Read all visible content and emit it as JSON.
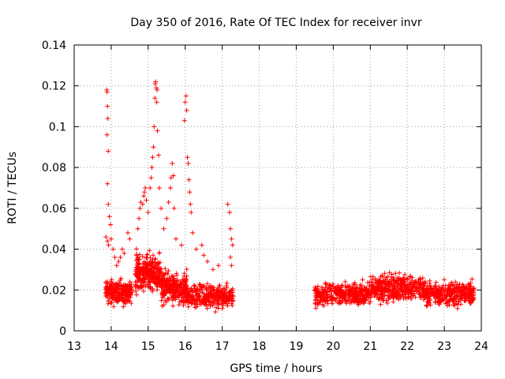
{
  "chart_data": {
    "type": "scatter",
    "title": "Day 350 of 2016, Rate Of TEC Index for receiver invr",
    "xlabel": "GPS time / hours",
    "ylabel": "ROTI / TECUs",
    "xlim": [
      13,
      24
    ],
    "ylim": [
      0,
      0.14
    ],
    "xticks": [
      13,
      14,
      15,
      16,
      17,
      18,
      19,
      20,
      21,
      22,
      23,
      24
    ],
    "xtick_labels": [
      "13",
      "14",
      "15",
      "16",
      "17",
      "18",
      "19",
      "20",
      "21",
      "22",
      "23",
      "24"
    ],
    "yticks": [
      0,
      0.02,
      0.04,
      0.06,
      0.08,
      0.1,
      0.12,
      0.14
    ],
    "ytick_labels": [
      "0",
      "0.02",
      "0.04",
      "0.06",
      "0.08",
      "0.1",
      "0.12",
      "0.14"
    ],
    "grid": true,
    "marker": "+",
    "color": "#ff0000",
    "series": [
      {
        "name": "ROTI",
        "points": [
          [
            13.88,
            0.118
          ],
          [
            13.89,
            0.117
          ],
          [
            13.9,
            0.11
          ],
          [
            13.91,
            0.104
          ],
          [
            13.89,
            0.096
          ],
          [
            13.92,
            0.088
          ],
          [
            13.9,
            0.072
          ],
          [
            13.92,
            0.062
          ],
          [
            13.95,
            0.056
          ],
          [
            13.98,
            0.052
          ],
          [
            13.86,
            0.046
          ],
          [
            13.9,
            0.044
          ],
          [
            13.93,
            0.042
          ],
          [
            14.0,
            0.045
          ],
          [
            14.05,
            0.04
          ],
          [
            14.1,
            0.036
          ],
          [
            14.15,
            0.032
          ],
          [
            14.2,
            0.034
          ],
          [
            14.25,
            0.036
          ],
          [
            14.3,
            0.04
          ],
          [
            14.35,
            0.038
          ],
          [
            14.45,
            0.048
          ],
          [
            14.5,
            0.045
          ],
          [
            14.72,
            0.05
          ],
          [
            14.75,
            0.055
          ],
          [
            14.78,
            0.06
          ],
          [
            14.8,
            0.063
          ],
          [
            14.85,
            0.062
          ],
          [
            14.88,
            0.066
          ],
          [
            14.9,
            0.068
          ],
          [
            14.92,
            0.07
          ],
          [
            14.95,
            0.064
          ],
          [
            15.0,
            0.058
          ],
          [
            15.05,
            0.07
          ],
          [
            15.08,
            0.075
          ],
          [
            15.1,
            0.08
          ],
          [
            15.12,
            0.085
          ],
          [
            15.14,
            0.09
          ],
          [
            15.16,
            0.1
          ],
          [
            15.18,
            0.114
          ],
          [
            15.19,
            0.121
          ],
          [
            15.2,
            0.122
          ],
          [
            15.22,
            0.119
          ],
          [
            15.24,
            0.118
          ],
          [
            15.23,
            0.112
          ],
          [
            15.25,
            0.098
          ],
          [
            15.28,
            0.086
          ],
          [
            15.3,
            0.07
          ],
          [
            15.35,
            0.06
          ],
          [
            15.42,
            0.05
          ],
          [
            15.5,
            0.055
          ],
          [
            15.55,
            0.063
          ],
          [
            15.6,
            0.07
          ],
          [
            15.62,
            0.075
          ],
          [
            15.65,
            0.082
          ],
          [
            15.68,
            0.076
          ],
          [
            15.7,
            0.06
          ],
          [
            15.75,
            0.045
          ],
          [
            15.9,
            0.042
          ],
          [
            15.98,
            0.103
          ],
          [
            16.0,
            0.112
          ],
          [
            16.02,
            0.115
          ],
          [
            16.04,
            0.108
          ],
          [
            16.06,
            0.085
          ],
          [
            16.08,
            0.082
          ],
          [
            16.1,
            0.074
          ],
          [
            16.12,
            0.068
          ],
          [
            16.14,
            0.062
          ],
          [
            16.16,
            0.058
          ],
          [
            16.2,
            0.048
          ],
          [
            16.3,
            0.04
          ],
          [
            16.45,
            0.042
          ],
          [
            16.5,
            0.037
          ],
          [
            16.6,
            0.034
          ],
          [
            16.75,
            0.03
          ],
          [
            16.9,
            0.032
          ],
          [
            17.15,
            0.062
          ],
          [
            17.2,
            0.058
          ],
          [
            17.22,
            0.05
          ],
          [
            17.25,
            0.045
          ],
          [
            17.28,
            0.042
          ],
          [
            17.22,
            0.036
          ],
          [
            17.25,
            0.032
          ]
        ]
      }
    ]
  }
}
